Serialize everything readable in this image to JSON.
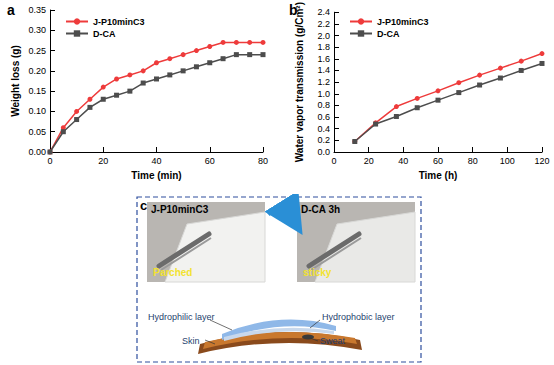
{
  "chart_data": [
    {
      "type": "line",
      "title": "a",
      "x_label": "Time (min)",
      "y_label": "Weight loss (g)",
      "x": [
        0,
        5,
        10,
        15,
        20,
        25,
        30,
        35,
        40,
        45,
        50,
        55,
        60,
        65,
        70,
        75,
        80
      ],
      "series": [
        {
          "name": "J-P10minC3",
          "color": "#ee3b3b",
          "marker": "circle",
          "values": [
            0,
            0.06,
            0.1,
            0.13,
            0.16,
            0.18,
            0.19,
            0.2,
            0.22,
            0.23,
            0.24,
            0.25,
            0.26,
            0.27,
            0.27,
            0.27,
            0.27
          ]
        },
        {
          "name": "D-CA",
          "color": "#4d4d4d",
          "marker": "square",
          "values": [
            0,
            0.05,
            0.08,
            0.11,
            0.13,
            0.14,
            0.15,
            0.17,
            0.18,
            0.19,
            0.2,
            0.21,
            0.22,
            0.23,
            0.24,
            0.24,
            0.24
          ]
        }
      ],
      "xlim": [
        0,
        80
      ],
      "xticks": [
        0,
        20,
        40,
        60,
        80
      ],
      "ylim": [
        0,
        0.35
      ],
      "yticks": [
        {
          "value": 0,
          "label": "0.00"
        },
        {
          "value": 0.05,
          "label": "0.05"
        },
        {
          "value": 0.1,
          "label": "0.10"
        },
        {
          "value": 0.15,
          "label": "0.15"
        },
        {
          "value": 0.2,
          "label": "0.20"
        },
        {
          "value": 0.25,
          "label": "0.25"
        },
        {
          "value": 0.3,
          "label": "0.30"
        },
        {
          "value": 0.35,
          "label": "0.35"
        }
      ],
      "grid": false,
      "legend": "top-left"
    },
    {
      "type": "line",
      "title": "b",
      "x_label": "Time (h)",
      "y_label": "Water vapor transmission (g/Cm²)",
      "x": [
        12,
        24,
        36,
        48,
        60,
        72,
        84,
        96,
        108,
        120
      ],
      "series": [
        {
          "name": "J-P10minC3",
          "color": "#ee3b3b",
          "marker": "circle",
          "values": [
            0.18,
            0.5,
            0.78,
            0.92,
            1.05,
            1.19,
            1.32,
            1.44,
            1.56,
            1.69
          ]
        },
        {
          "name": "D-CA",
          "color": "#4d4d4d",
          "marker": "square",
          "values": [
            0.18,
            0.48,
            0.61,
            0.76,
            0.89,
            1.02,
            1.15,
            1.27,
            1.4,
            1.52
          ]
        }
      ],
      "xlim": [
        0,
        120
      ],
      "xticks": [
        0,
        20,
        40,
        60,
        80,
        100,
        120
      ],
      "ylim": [
        0,
        2.4
      ],
      "yticks": [
        {
          "value": 0,
          "label": "0.0"
        },
        {
          "value": 0.2,
          "label": "0.2"
        },
        {
          "value": 0.4,
          "label": "0.4"
        },
        {
          "value": 0.6,
          "label": "0.6"
        },
        {
          "value": 0.8,
          "label": "0.8"
        },
        {
          "value": 1.0,
          "label": "1.0"
        },
        {
          "value": 1.2,
          "label": "1.2"
        },
        {
          "value": 1.4,
          "label": "1.4"
        },
        {
          "value": 1.6,
          "label": "1.6"
        },
        {
          "value": 1.8,
          "label": "1.8"
        },
        {
          "value": 2.0,
          "label": "2.0"
        },
        {
          "value": 2.2,
          "label": "2.2"
        },
        {
          "value": 2.4,
          "label": "2.4"
        }
      ],
      "grid": false,
      "legend": "top-left"
    }
  ],
  "panel_c": {
    "label": "c",
    "photos": [
      {
        "title": "J-P10minC3",
        "caption": "Parched"
      },
      {
        "title": "D-CA 3h",
        "caption": "sticky"
      }
    ],
    "diagram": {
      "left_top": "Hydrophilic layer",
      "right_top": "Hydrophobic layer",
      "left_bottom": "Skin",
      "right_bottom": "Sweat"
    }
  }
}
